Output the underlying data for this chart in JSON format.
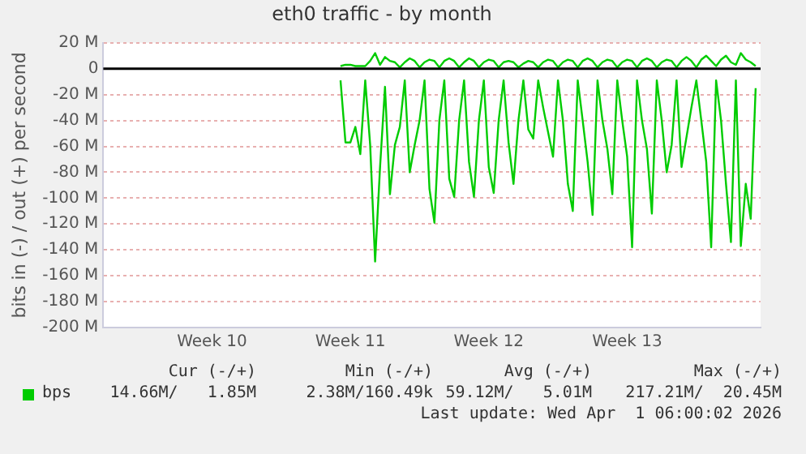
{
  "chart_data": {
    "type": "line",
    "title": "eth0 traffic - by month",
    "ylabel": "bits in (-) / out (+) per second",
    "categories": [
      null,
      null,
      null,
      null,
      null,
      null,
      null,
      null,
      null,
      null,
      null,
      null,
      null,
      null,
      null,
      null,
      null,
      null,
      null,
      null,
      null,
      null,
      "Week 10",
      null,
      null,
      null,
      null,
      null,
      null,
      null,
      null,
      null,
      null,
      null,
      null,
      null,
      null,
      null,
      null,
      null,
      null,
      null,
      null,
      null,
      null,
      null,
      null,
      null,
      null,
      null,
      "Week 11",
      null,
      null,
      null,
      null,
      null,
      null,
      null,
      null,
      null,
      null,
      null,
      null,
      null,
      null,
      null,
      null,
      null,
      null,
      null,
      null,
      null,
      null,
      null,
      null,
      null,
      null,
      null,
      "Week 12",
      null,
      null,
      null,
      null,
      null,
      null,
      null,
      null,
      null,
      null,
      null,
      null,
      null,
      null,
      null,
      null,
      null,
      null,
      null,
      null,
      null,
      null,
      null,
      null,
      null,
      null,
      null,
      "Week 13",
      null,
      null,
      null,
      null,
      null,
      null,
      null,
      null,
      null,
      null,
      null,
      null,
      null,
      null,
      null,
      null,
      null,
      null,
      null,
      null,
      null,
      null,
      null,
      null,
      null,
      null,
      null
    ],
    "ylim": [
      -200,
      20
    ],
    "yticks": [
      {
        "value": 20,
        "label": "20 M"
      },
      0,
      {
        "value": -20,
        "label": "-20 M"
      },
      {
        "value": -40,
        "label": "-40 M"
      },
      {
        "value": -60,
        "label": "-60 M"
      },
      {
        "value": -80,
        "label": "-80 M"
      },
      {
        "value": -100,
        "label": "-100 M"
      },
      {
        "value": -120,
        "label": "-120 M"
      },
      {
        "value": -140,
        "label": "-140 M"
      },
      {
        "value": -160,
        "label": "-160 M"
      },
      {
        "value": -180,
        "label": "-180 M"
      },
      {
        "value": -200,
        "label": "-200 M"
      }
    ],
    "grid": "y",
    "legend": "bottom",
    "marker": "none",
    "line_style": "solid",
    "ref_lines": [
      {
        "axis": "y",
        "value": 0,
        "color": "#000000"
      }
    ],
    "series": [
      {
        "name": "bps",
        "color": "#00cc00",
        "values": [
          null,
          null,
          null,
          null,
          null,
          null,
          null,
          null,
          null,
          null,
          null,
          null,
          null,
          null,
          null,
          null,
          null,
          null,
          null,
          null,
          null,
          null,
          null,
          null,
          null,
          null,
          null,
          null,
          null,
          null,
          null,
          null,
          null,
          null,
          null,
          null,
          null,
          null,
          null,
          null,
          null,
          null,
          null,
          null,
          null,
          null,
          null,
          null,
          -9,
          -57,
          -57,
          -45,
          -66,
          -9,
          -59,
          -149,
          -76,
          -14,
          -97,
          -59,
          -45,
          -9,
          -80,
          -59,
          -40,
          -9,
          -93,
          -119,
          -40,
          -9,
          -85,
          -99,
          -40,
          -9,
          -72,
          -99,
          -40,
          -9,
          -76,
          -96,
          -40,
          -9,
          -57,
          -89,
          -40,
          -9,
          -47,
          -54,
          -9,
          -30,
          -49,
          -68,
          -9,
          -40,
          -89,
          -110,
          -9,
          -40,
          -72,
          -113,
          -9,
          -40,
          -62,
          -97,
          -9,
          -40,
          -68,
          -138,
          -9,
          -40,
          -62,
          -112,
          -9,
          -40,
          -80,
          -59,
          -9,
          -76,
          -53,
          -30,
          -9,
          -40,
          -72,
          -138,
          -9,
          -40,
          -89,
          -134,
          -9,
          -137,
          -89,
          -116,
          -15,
          null
        ]
      },
      {
        "color": "#00cc00",
        "values": [
          null,
          null,
          null,
          null,
          null,
          null,
          null,
          null,
          null,
          null,
          null,
          null,
          null,
          null,
          null,
          null,
          null,
          null,
          null,
          null,
          null,
          null,
          null,
          null,
          null,
          null,
          null,
          null,
          null,
          null,
          null,
          null,
          null,
          null,
          null,
          null,
          null,
          null,
          null,
          null,
          null,
          null,
          null,
          null,
          null,
          null,
          null,
          null,
          2,
          3,
          3,
          2,
          2,
          2,
          6,
          12,
          3,
          9,
          6,
          5,
          1,
          5,
          8,
          6,
          1,
          5,
          7,
          6,
          1,
          6,
          8,
          6,
          1,
          5,
          8,
          6,
          1,
          5,
          7,
          6,
          1,
          5,
          6,
          5,
          1,
          4,
          6,
          5,
          1,
          5,
          7,
          6,
          1,
          5,
          7,
          6,
          1,
          6,
          8,
          6,
          1,
          5,
          7,
          6,
          1,
          5,
          7,
          6,
          1,
          6,
          8,
          6,
          1,
          5,
          7,
          6,
          1,
          6,
          9,
          6,
          1,
          7,
          10,
          6,
          2,
          7,
          10,
          5,
          3,
          12,
          7,
          5,
          2,
          null
        ]
      }
    ],
    "annotations": [
      "Cur (-/+)",
      "Min (-/+)",
      "Avg (-/+)",
      "Max (-/+)",
      "14.66M/   1.85M",
      "2.38M/160.49k",
      "59.12M/   5.01M",
      "217.21M/  20.45M",
      "Last update: Wed Apr  1 06:00:02 2026"
    ]
  }
}
